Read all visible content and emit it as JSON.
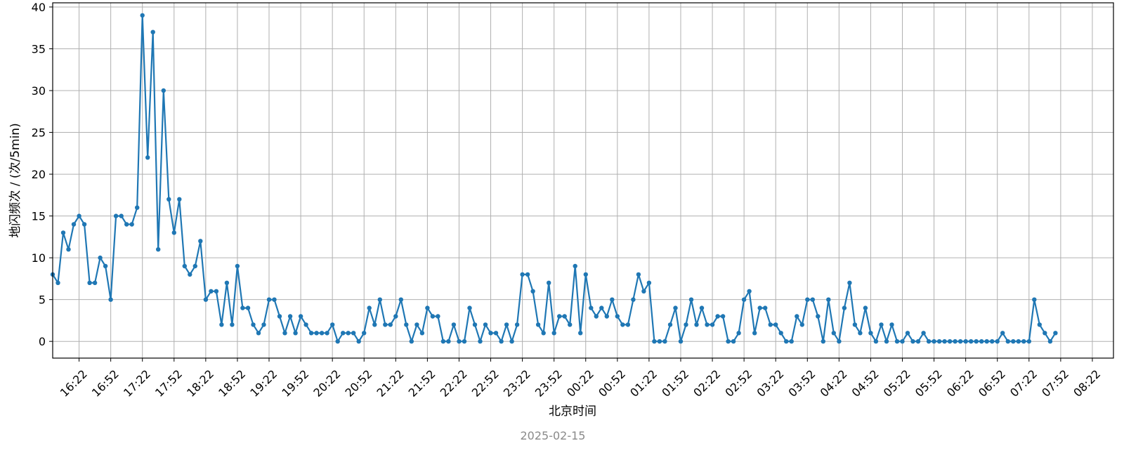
{
  "chart_data": {
    "type": "line",
    "title": "",
    "xlabel": "北京时间",
    "ylabel": "地闪频次 / (次/5min)",
    "footer": "2025-02-15",
    "interval_minutes": 5,
    "x_start": "15:57",
    "xticks": [
      "16:22",
      "16:52",
      "17:22",
      "17:52",
      "18:22",
      "18:52",
      "19:22",
      "19:52",
      "20:22",
      "20:52",
      "21:22",
      "21:52",
      "22:22",
      "22:52",
      "23:22",
      "23:52",
      "00:22",
      "00:52",
      "01:22",
      "01:52",
      "02:22",
      "02:52",
      "03:22",
      "03:52",
      "04:22",
      "04:52",
      "05:22",
      "05:52",
      "06:22",
      "06:52",
      "07:22",
      "07:52",
      "08:22"
    ],
    "xlim": [
      "15:57",
      "08:42"
    ],
    "yticks": [
      0,
      5,
      10,
      15,
      20,
      25,
      30,
      35,
      40
    ],
    "ylim": [
      -2,
      40.5
    ],
    "grid": true,
    "legend": "none",
    "series": [
      {
        "color": "#1f77b4",
        "marker": "circle",
        "values": [
          8,
          7,
          13,
          11,
          14,
          15,
          14,
          7,
          7,
          10,
          9,
          5,
          15,
          15,
          14,
          14,
          16,
          39,
          22,
          37,
          11,
          30,
          17,
          13,
          17,
          9,
          8,
          9,
          12,
          5,
          6,
          6,
          2,
          7,
          2,
          9,
          4,
          4,
          2,
          1,
          2,
          5,
          5,
          3,
          1,
          3,
          1,
          3,
          2,
          1,
          1,
          1,
          1,
          2,
          0,
          1,
          1,
          1,
          0,
          1,
          4,
          2,
          5,
          2,
          2,
          3,
          5,
          2,
          0,
          2,
          1,
          4,
          3,
          3,
          0,
          0,
          2,
          0,
          0,
          4,
          2,
          0,
          2,
          1,
          1,
          0,
          2,
          0,
          2,
          8,
          8,
          6,
          2,
          1,
          7,
          1,
          3,
          3,
          2,
          9,
          1,
          8,
          4,
          3,
          4,
          3,
          5,
          3,
          2,
          2,
          5,
          8,
          6,
          7,
          0,
          0,
          0,
          2,
          4,
          0,
          2,
          5,
          2,
          4,
          2,
          2,
          3,
          3,
          0,
          0,
          1,
          5,
          6,
          1,
          4,
          4,
          2,
          2,
          1,
          0,
          0,
          3,
          2,
          5,
          5,
          3,
          0,
          5,
          1,
          0,
          4,
          7,
          2,
          1,
          4,
          1,
          0,
          2,
          0,
          2,
          0,
          0,
          1,
          0,
          0,
          1,
          0,
          0,
          0,
          0,
          0,
          0,
          0,
          0,
          0,
          0,
          0,
          0,
          0,
          0,
          1,
          0,
          0,
          0,
          0,
          0,
          5,
          2,
          1,
          0,
          1
        ]
      }
    ]
  }
}
